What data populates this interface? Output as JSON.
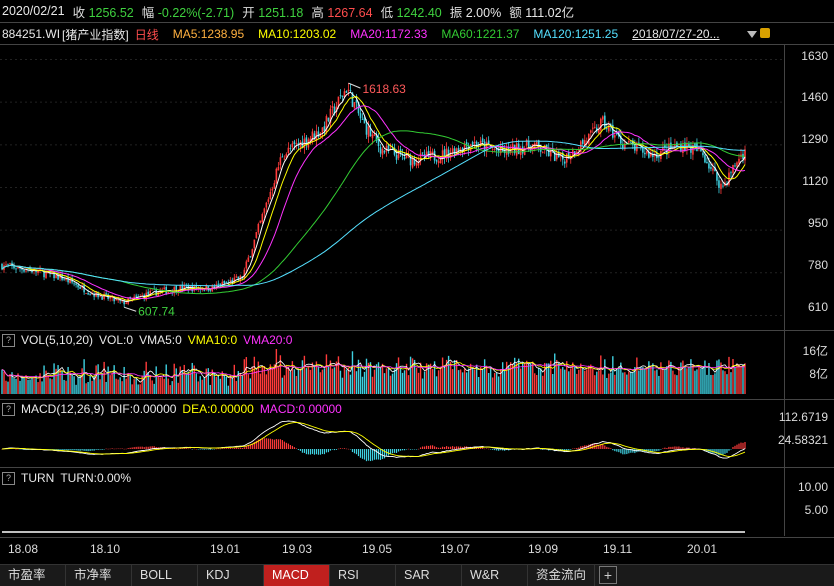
{
  "header": {
    "date": "2020/02/21",
    "close_label": "收",
    "close_value": "1256.52",
    "change_label": "幅",
    "change_value": "-0.22%(-2.71)",
    "open_label": "开",
    "open_value": "1251.18",
    "high_label": "高",
    "high_value": "1267.64",
    "low_label": "低",
    "low_value": "1242.40",
    "amplitude_label": "振",
    "amplitude_value": "2.00%",
    "amount_label": "额",
    "amount_value": "111.02亿"
  },
  "ma_bar": {
    "code": "884251.WI",
    "name": "[猪产业指数]",
    "period": "日线",
    "ma5": "MA5:1238.95",
    "ma10": "MA10:1203.02",
    "ma20": "MA20:1172.33",
    "ma60": "MA60:1221.37",
    "ma120": "MA120:1251.25",
    "range": "2018/07/27-20..."
  },
  "colors": {
    "up": "#ff3b3b",
    "down": "#3fd0e0",
    "ma5": "#ffffff",
    "ma10": "#ffff00",
    "ma20": "#ff33ff",
    "ma60": "#33cc33",
    "ma120": "#55e0ff",
    "tab_active": "#c0201e"
  },
  "price_panel": {
    "y_ticks": [
      "1630",
      "1460",
      "1290",
      "1120",
      "950",
      "780",
      "610"
    ],
    "high_marker": "1618.63",
    "low_marker": "607.74"
  },
  "vol_panel": {
    "title": "VOL(5,10,20)",
    "vol": "VOL:0",
    "vma5": "VMA5:0",
    "vma10": "VMA10:0",
    "vma20": "VMA20:0",
    "y_ticks": [
      "16亿",
      "8亿"
    ]
  },
  "macd_panel": {
    "title": "MACD(12,26,9)",
    "dif": "DIF:0.00000",
    "dea": "DEA:0.00000",
    "macd": "MACD:0.00000",
    "y_ticks": [
      "112.6719",
      "24.58321"
    ]
  },
  "turn_panel": {
    "title": "TURN",
    "turn": "TURN:0.00%",
    "y_ticks": [
      "10.00",
      "5.00"
    ]
  },
  "x_axis": [
    "18.08",
    "18.10",
    "19.01",
    "19.03",
    "19.05",
    "19.07",
    "19.09",
    "19.11",
    "20.01"
  ],
  "tabs": [
    "市盈率",
    "市净率",
    "BOLL",
    "KDJ",
    "MACD",
    "RSI",
    "SAR",
    "W&R",
    "资金流向"
  ],
  "active_tab": "MACD",
  "chart_data": {
    "type": "line",
    "title": "",
    "ylim": [
      560,
      1660
    ],
    "anchors_x": [
      0,
      30,
      60,
      90,
      120,
      150,
      180,
      210,
      240,
      260,
      280,
      300,
      320,
      345,
      360,
      380,
      410,
      440,
      470,
      500,
      530,
      560,
      590,
      600,
      620,
      650,
      680,
      700,
      720,
      740
    ],
    "anchors_close": [
      810,
      790,
      760,
      700,
      660,
      700,
      720,
      720,
      760,
      1000,
      1250,
      1300,
      1350,
      1520,
      1380,
      1270,
      1230,
      1250,
      1300,
      1260,
      1290,
      1230,
      1330,
      1380,
      1300,
      1250,
      1290,
      1260,
      1120,
      1256.52
    ]
  }
}
